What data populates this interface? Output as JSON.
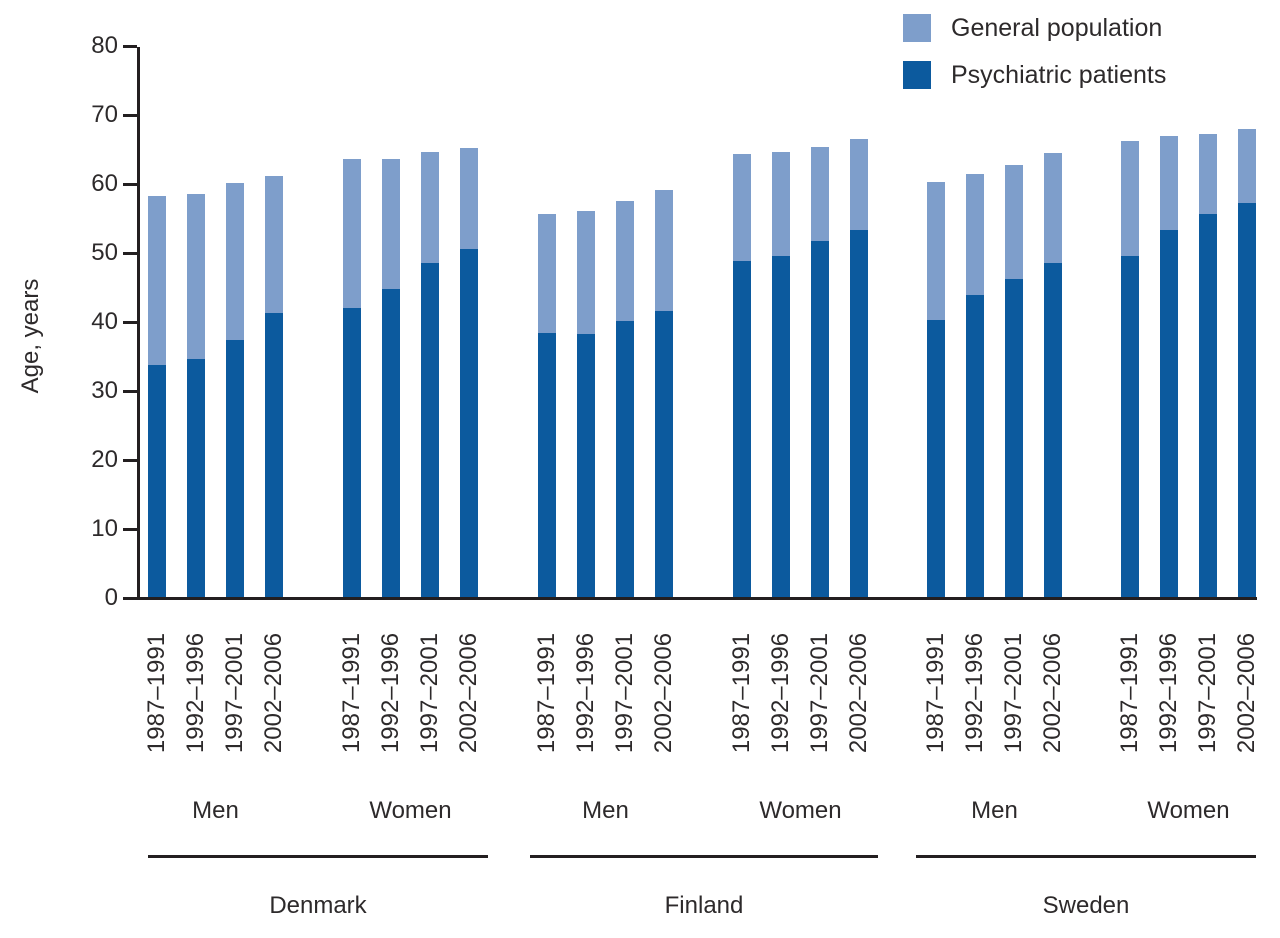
{
  "figure": {
    "background": "#ffffff",
    "axis_color": "#231f20",
    "text_color": "#2d2a2b"
  },
  "chart_data": {
    "type": "bar",
    "title": "",
    "xlabel": "",
    "ylabel": "Age, years",
    "ylim": [
      0,
      80
    ],
    "ytick_step": 10,
    "ytick_labels": [
      "0",
      "10",
      "20",
      "30",
      "40",
      "50",
      "60",
      "70",
      "80"
    ],
    "grid": false,
    "legend_position": "top-right",
    "bar_rendering": "overlaid - general population bar behind, psychiatric patients bar in front of same bar slot",
    "periods": [
      "1987–1991",
      "1992–1996",
      "1997–2001",
      "2002–2006"
    ],
    "countries": [
      "Denmark",
      "Finland",
      "Sweden"
    ],
    "sexes": [
      "Men",
      "Women"
    ],
    "series": [
      {
        "name": "General population",
        "color": "#7e9ecb"
      },
      {
        "name": "Psychiatric patients",
        "color": "#0c5a9e"
      }
    ],
    "groups": [
      {
        "country": "Denmark",
        "sex": "Men",
        "general_population": [
          58.2,
          58.5,
          60.1,
          61.1
        ],
        "psychiatric_patients": [
          33.7,
          34.6,
          37.4,
          41.3
        ]
      },
      {
        "country": "Denmark",
        "sex": "Women",
        "general_population": [
          63.6,
          63.6,
          64.7,
          65.2
        ],
        "psychiatric_patients": [
          42.0,
          44.8,
          48.5,
          50.6
        ]
      },
      {
        "country": "Finland",
        "sex": "Men",
        "general_population": [
          55.7,
          56.1,
          57.6,
          59.1
        ],
        "psychiatric_patients": [
          38.4,
          38.3,
          40.2,
          41.6
        ]
      },
      {
        "country": "Finland",
        "sex": "Women",
        "general_population": [
          64.3,
          64.6,
          65.4,
          66.5
        ],
        "psychiatric_patients": [
          48.9,
          49.6,
          51.8,
          53.3
        ]
      },
      {
        "country": "Sweden",
        "sex": "Men",
        "general_population": [
          60.3,
          61.4,
          62.7,
          64.5
        ],
        "psychiatric_patients": [
          40.3,
          43.9,
          46.3,
          48.6
        ]
      },
      {
        "country": "Sweden",
        "sex": "Women",
        "general_population": [
          66.2,
          66.9,
          67.2,
          67.9
        ],
        "psychiatric_patients": [
          49.6,
          53.4,
          55.7,
          57.2
        ]
      }
    ]
  }
}
